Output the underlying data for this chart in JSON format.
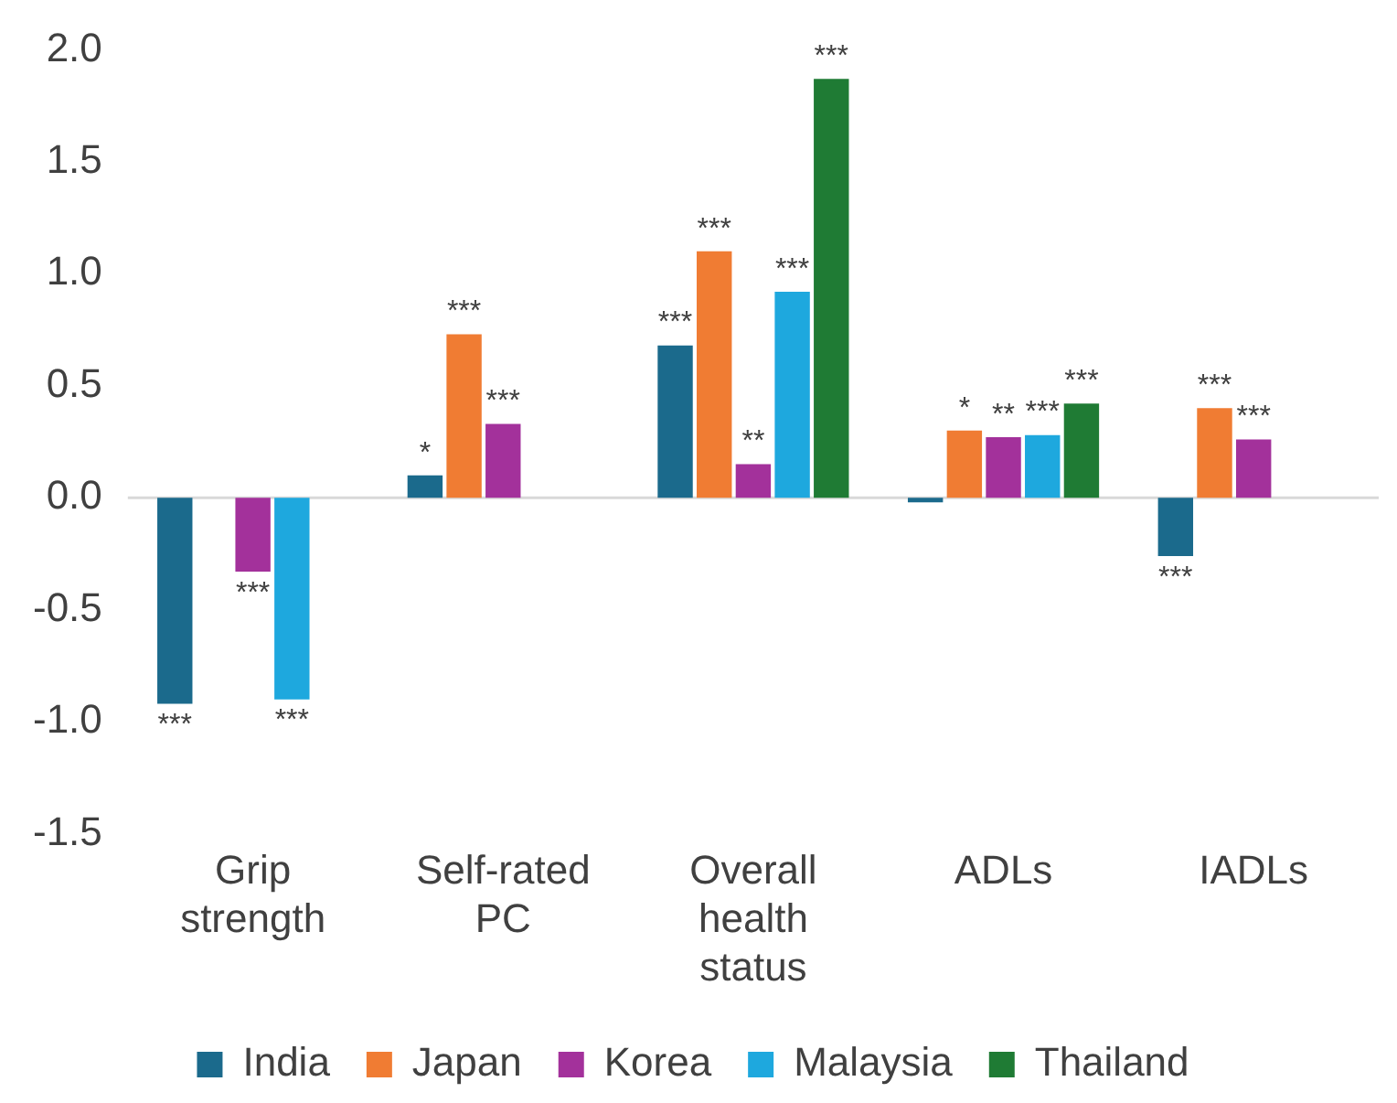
{
  "chart_data": {
    "type": "bar",
    "categories": [
      "Grip strength",
      "Self-rated PC",
      "Overall health status",
      "ADLs",
      "IADLs"
    ],
    "series": [
      {
        "name": "India",
        "color": "#1b6a8c",
        "values": [
          -0.92,
          0.1,
          0.68,
          -0.02,
          -0.26
        ],
        "value_labels": [
          "***",
          "*",
          "***",
          null,
          "***"
        ]
      },
      {
        "name": "Japan",
        "color": "#f07c33",
        "values": [
          null,
          0.73,
          1.1,
          0.3,
          0.4
        ],
        "value_labels": [
          null,
          "***",
          "***",
          "*",
          "***"
        ]
      },
      {
        "name": "Korea",
        "color": "#a3319b",
        "values": [
          -0.33,
          0.33,
          0.15,
          0.27,
          0.26
        ],
        "value_labels": [
          "***",
          "***",
          "**",
          "**",
          "***"
        ]
      },
      {
        "name": "Malaysia",
        "color": "#1ea8de",
        "values": [
          -0.9,
          null,
          0.92,
          0.28,
          null
        ],
        "value_labels": [
          "***",
          null,
          "***",
          "***",
          null
        ]
      },
      {
        "name": "Thailand",
        "color": "#1f7b34",
        "values": [
          null,
          null,
          1.87,
          0.42,
          null
        ],
        "value_labels": [
          null,
          null,
          "***",
          "***",
          null
        ]
      }
    ],
    "ylim": [
      -1.5,
      2.0
    ],
    "yticks": [
      {
        "value": -1.5,
        "label": "-1.5"
      },
      {
        "value": -1,
        "label": "-1.0"
      },
      {
        "value": -0.5,
        "label": "-0.5"
      },
      {
        "value": 0,
        "label": "0.0"
      },
      {
        "value": 0.5,
        "label": "0.5"
      },
      {
        "value": 1,
        "label": "1.0"
      },
      {
        "value": 1.5,
        "label": "1.5"
      },
      {
        "value": 2,
        "label": "2.0"
      }
    ],
    "grid": false,
    "legend": "bottom",
    "ref_lines": [
      {
        "axis": "y",
        "value": 0,
        "color": "#d9d9d9"
      }
    ]
  }
}
